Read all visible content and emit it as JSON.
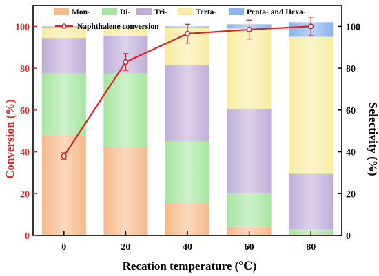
{
  "chart_data": {
    "type": "bar",
    "x": [
      0,
      20,
      40,
      60,
      80
    ],
    "xlabel": "Recation temperature (℃)",
    "ylabel_left": "Conversion (%)",
    "ylabel_right": "Selectivity (%)",
    "ylim_left": [
      0,
      110
    ],
    "ylim_right": [
      0,
      110
    ],
    "yticks_left": [
      0,
      20,
      40,
      60,
      80,
      100
    ],
    "yticks_right": [
      0,
      20,
      40,
      60,
      80,
      100
    ],
    "stacked_series": [
      {
        "name": "Mon-",
        "color": "#f5b98a",
        "values": [
          48,
          42.5,
          15.5,
          4,
          0.5
        ]
      },
      {
        "name": "Di-",
        "color": "#a6e6a0",
        "values": [
          29.5,
          35,
          29.5,
          16,
          2.5
        ]
      },
      {
        "name": "Tri-",
        "color": "#bfaed9",
        "values": [
          17,
          18,
          36.5,
          40.5,
          26.5
        ]
      },
      {
        "name": "Terta-",
        "color": "#f7eda0",
        "values": [
          5,
          4,
          18,
          38.5,
          65.5
        ]
      },
      {
        "name": "Penta- and Hexa-",
        "color": "#88b4f0",
        "values": [
          0.5,
          0.5,
          0.5,
          2,
          7
        ]
      }
    ],
    "line_series": {
      "name": "Naphthalene conversion",
      "color": "#e02020",
      "values": [
        38,
        83,
        96.5,
        98.5,
        100
      ],
      "errors": [
        1.5,
        4,
        4.5,
        4.5,
        4.5
      ]
    },
    "legend_position": "top"
  }
}
